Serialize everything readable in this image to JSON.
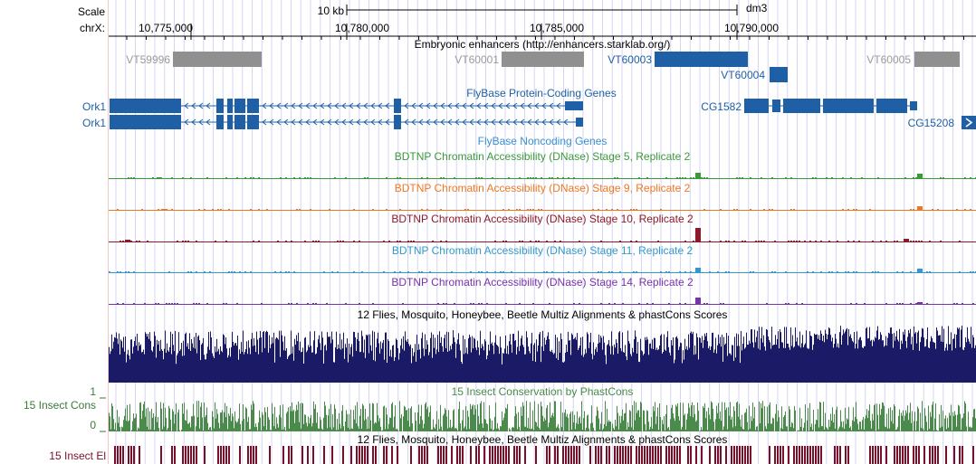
{
  "assembly": "dm3",
  "ruler": {
    "scale_label": "Scale",
    "scale_value": "10 kb",
    "chrom_label": "chrX:",
    "ticks": [
      "10,775,000",
      "10,780,000",
      "10,785,000",
      "10,790,000"
    ]
  },
  "enhancers": {
    "title": "Embryonic enhancers (http://enhancers.starklab.org/)",
    "items": [
      {
        "name": "VT59996",
        "highlighted": false
      },
      {
        "name": "VT60001",
        "highlighted": false
      },
      {
        "name": "VT60003",
        "highlighted": true
      },
      {
        "name": "VT60004",
        "highlighted": true
      },
      {
        "name": "VT60005",
        "highlighted": false
      }
    ]
  },
  "genes": {
    "title": "FlyBase Protein-Coding Genes",
    "items": [
      {
        "name": "Ork1",
        "strand": "-"
      },
      {
        "name": "Ork1",
        "strand": "-"
      },
      {
        "name": "CG1582",
        "strand": "+"
      },
      {
        "name": "CG15208",
        "strand": "+"
      }
    ]
  },
  "noncoding": {
    "title": "FlyBase Noncoding Genes"
  },
  "dnase_tracks": [
    {
      "title": "BDTNP Chromatin Accessibility (DNase) Stage 5, Replicate 2",
      "color": "#3a9a3a"
    },
    {
      "title": "BDTNP Chromatin Accessibility (DNase) Stage 9, Replicate 2",
      "color": "#ee7722"
    },
    {
      "title": "BDTNP Chromatin Accessibility (DNase) Stage 10, Replicate 2",
      "color": "#8b1a2b"
    },
    {
      "title": "BDTNP Chromatin Accessibility (DNase) Stage 11, Replicate 2",
      "color": "#3399cc"
    },
    {
      "title": "BDTNP Chromatin Accessibility (DNase) Stage 14, Replicate 2",
      "color": "#7733aa"
    }
  ],
  "multiz": {
    "title": "12 Flies, Mosquito, Honeybee, Beetle Multiz Alignments & phastCons Scores",
    "color": "#1a1a66"
  },
  "conservation": {
    "title": "15 Insect Conservation by PhastCons",
    "side_label": "15 Insect Cons",
    "ymax": "1",
    "ymin": "0",
    "color": "#4a8a4a"
  },
  "elements": {
    "title": "12 Flies, Mosquito, Honeybee, Beetle Multiz Alignments & phastCons Scores",
    "side_label": "15 Insect El",
    "color": "#7a0f2a"
  },
  "colors": {
    "gene": "#1f5fa6",
    "enhancer": "#909090",
    "enhancer_label": "#9a9a9a",
    "grid": "#d6d6f2",
    "left_rule": "#f2c8c8"
  }
}
